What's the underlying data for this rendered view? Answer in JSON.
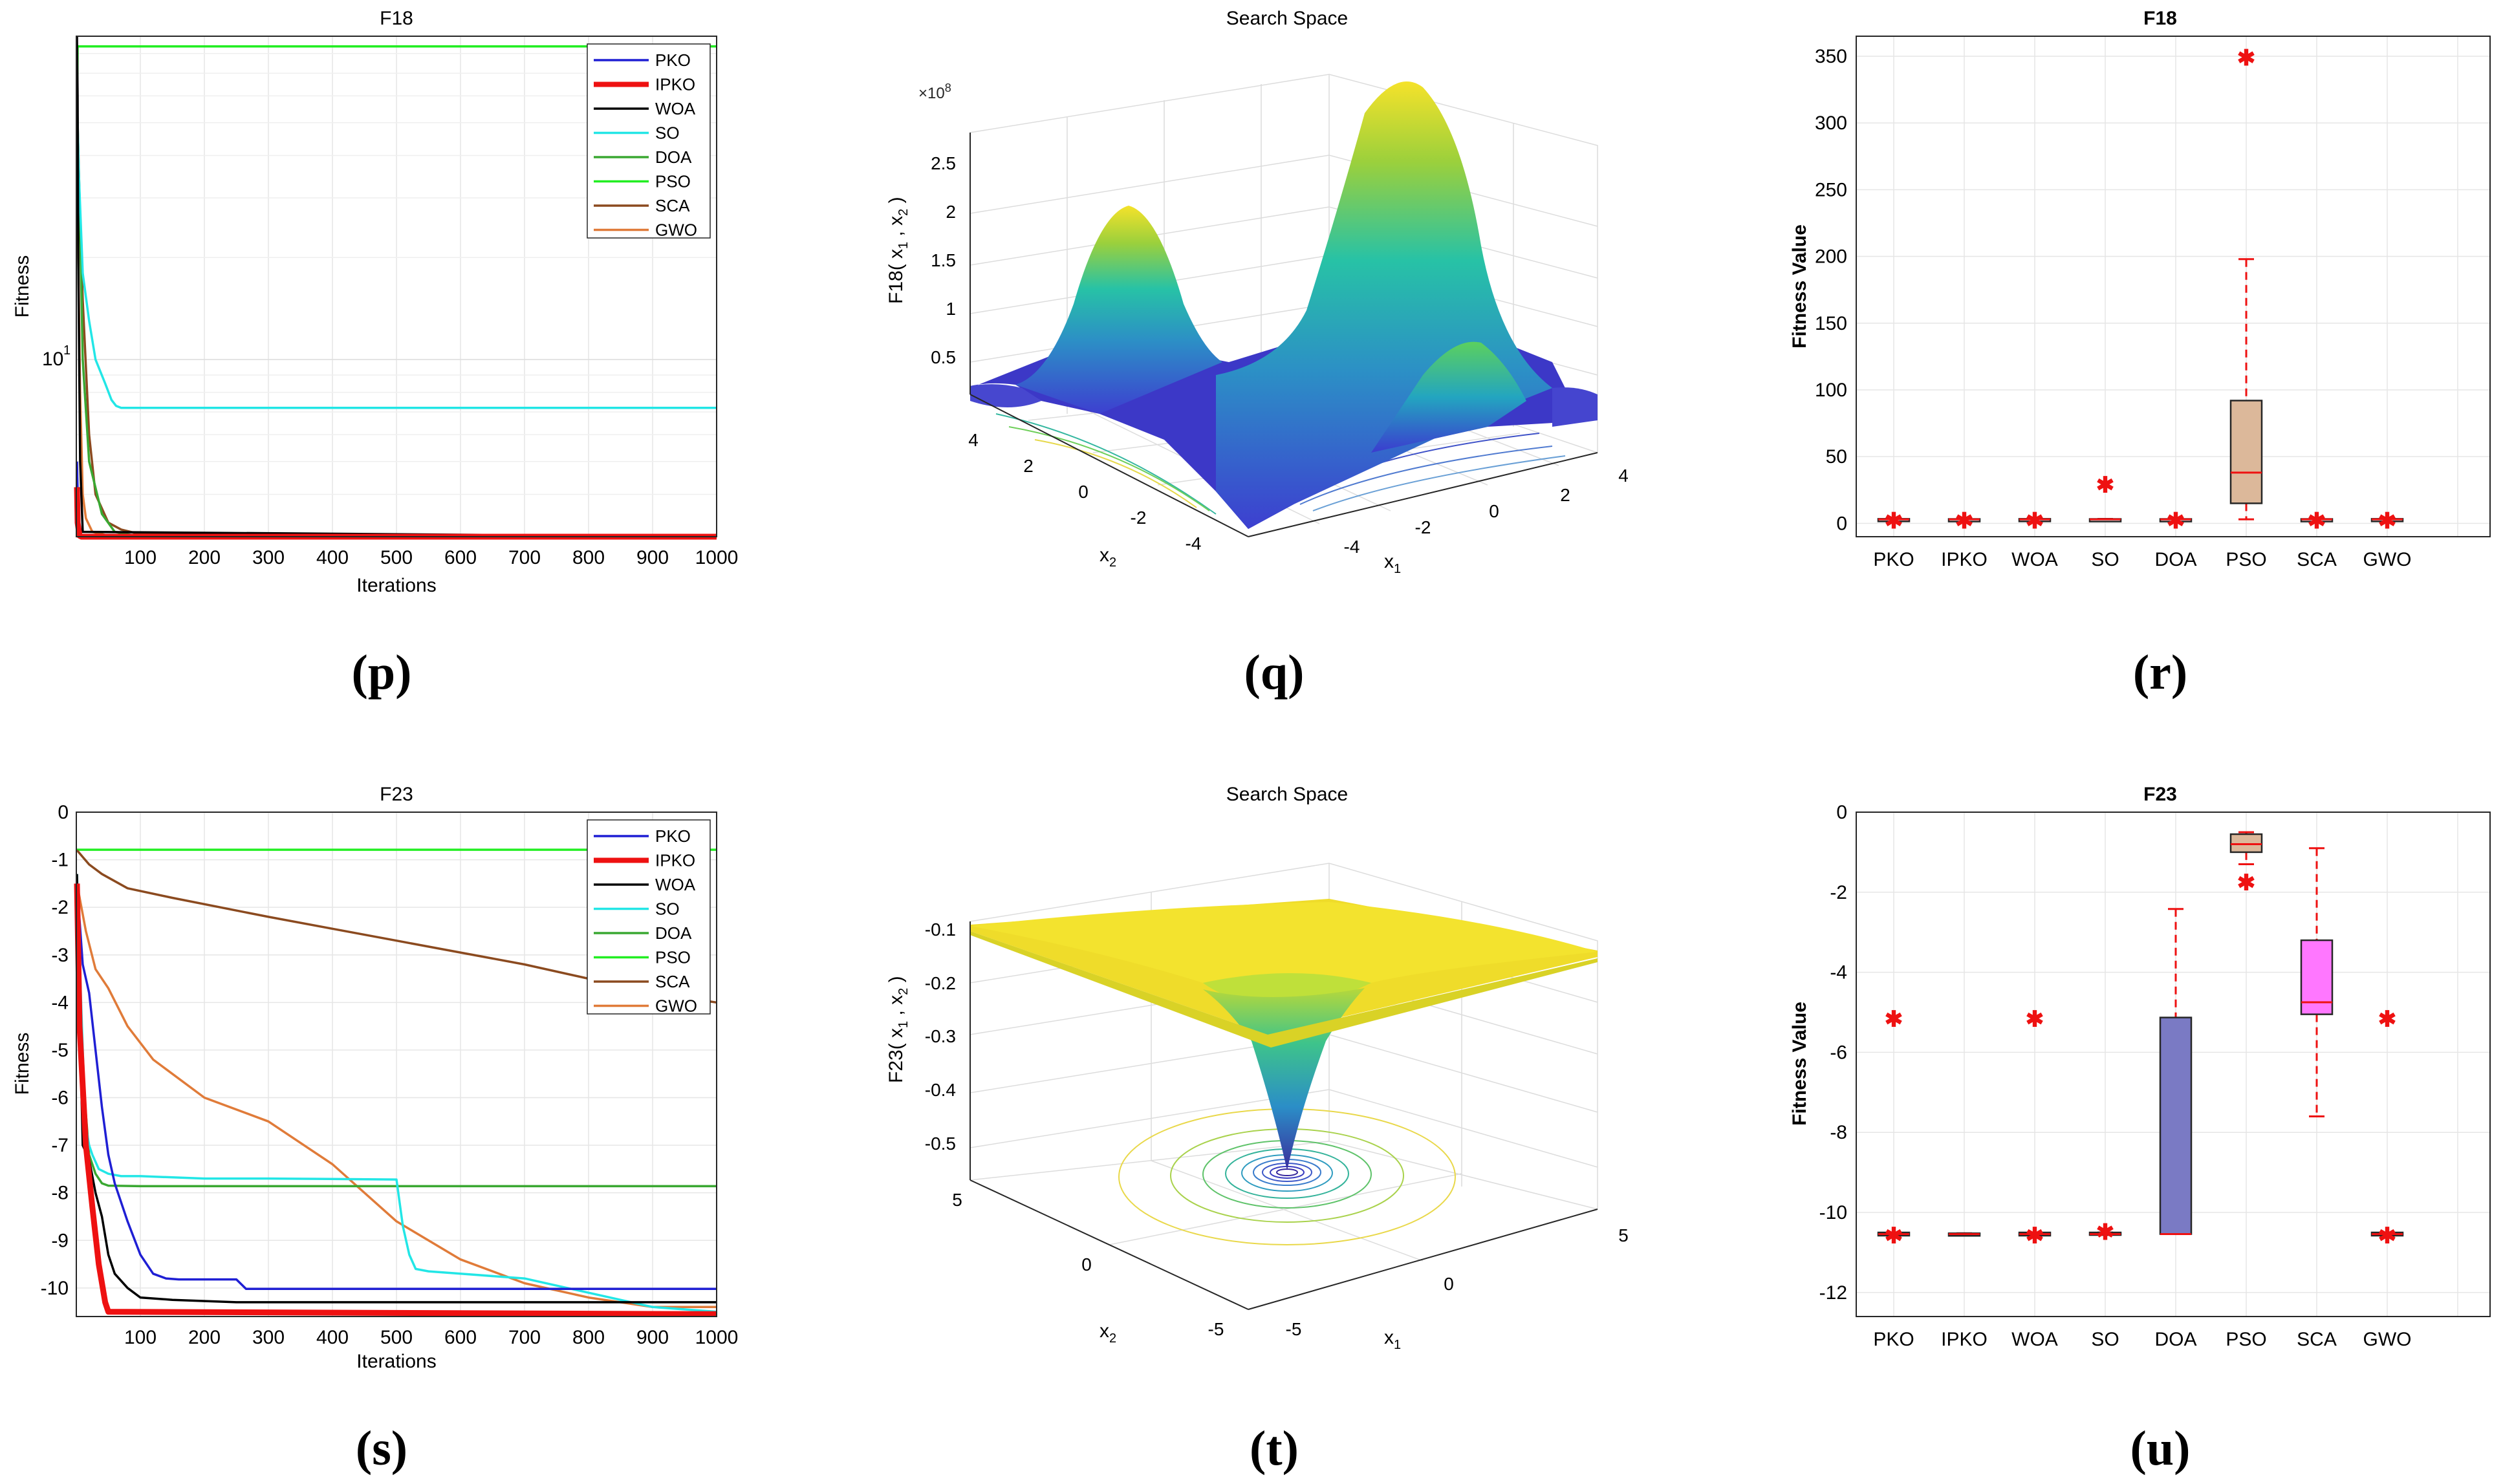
{
  "colors": {
    "PKO": "#1f1fd4",
    "IPKO": "#ee1111",
    "WOA": "#000000",
    "SO": "#22e6e6",
    "DOA": "#3aa832",
    "PSO": "#22ee22",
    "SCA": "#8b4a1f",
    "GWO": "#e07b39"
  },
  "captions": [
    "(p)",
    "(q)",
    "(r)",
    "(s)",
    "(t)",
    "(u)"
  ],
  "chart_data": [
    {
      "id": "p",
      "type": "line",
      "title": "F18",
      "xlabel": "Iterations",
      "ylabel": "Fitness",
      "yscale": "log",
      "xlim": [
        0,
        1000
      ],
      "ylim": [
        3,
        90
      ],
      "xticks": [
        100,
        200,
        300,
        400,
        500,
        600,
        700,
        800,
        900,
        1000
      ],
      "ytick_label_base": "10",
      "ytick_label_exp": "1",
      "legend": [
        "PKO",
        "IPKO",
        "WOA",
        "SO",
        "DOA",
        "PSO",
        "SCA",
        "GWO"
      ],
      "series": [
        {
          "name": "PKO",
          "x": [
            1,
            3,
            6,
            10,
            1000
          ],
          "y": [
            5,
            3.4,
            3.05,
            3,
            3
          ]
        },
        {
          "name": "IPKO",
          "x": [
            1,
            2,
            5,
            8,
            1000
          ],
          "y": [
            4.2,
            3.3,
            3.02,
            3,
            3
          ]
        },
        {
          "name": "WOA",
          "x": [
            1,
            2,
            3,
            6,
            10,
            1000
          ],
          "y": [
            90,
            60,
            20,
            5,
            3.1,
            3
          ]
        },
        {
          "name": "SO",
          "x": [
            1,
            4,
            10,
            20,
            30,
            45,
            55,
            62,
            70,
            1000
          ],
          "y": [
            60,
            35,
            18,
            13,
            10,
            8.5,
            7.6,
            7.3,
            7.2,
            7.2
          ]
        },
        {
          "name": "DOA",
          "x": [
            1,
            5,
            10,
            20,
            40,
            60,
            100,
            1000
          ],
          "y": [
            50,
            30,
            10,
            5,
            3.5,
            3.1,
            3,
            3
          ]
        },
        {
          "name": "PSO",
          "x": [
            1,
            2,
            3,
            1000
          ],
          "y": [
            50,
            84,
            84,
            84
          ]
        },
        {
          "name": "SCA",
          "x": [
            1,
            5,
            10,
            20,
            30,
            50,
            70,
            100,
            1000
          ],
          "y": [
            60,
            30,
            15,
            6,
            4,
            3.3,
            3.15,
            3.05,
            3
          ]
        },
        {
          "name": "GWO",
          "x": [
            1,
            3,
            6,
            10,
            15,
            25,
            50,
            1000
          ],
          "y": [
            40,
            20,
            8,
            4,
            3.4,
            3.1,
            3.02,
            3
          ]
        }
      ]
    },
    {
      "id": "q",
      "type": "surface",
      "title": "Search Space",
      "zlabel_fn": "F18",
      "exponent": "×10",
      "exponent_pow": "8",
      "xlabel": "x",
      "ylabel": "x",
      "zticks": [
        "0.5",
        "1",
        "1.5",
        "2",
        "2.5"
      ],
      "x1_ticks": [
        "-4",
        "-2",
        "0",
        "2",
        "4"
      ],
      "x2_ticks": [
        "4",
        "2",
        "0",
        "-2",
        "-4"
      ]
    },
    {
      "id": "r",
      "type": "box",
      "title": "F18",
      "ylabel": "Fitness Value",
      "ylim": [
        -10,
        365
      ],
      "yticks": [
        0,
        50,
        100,
        150,
        200,
        250,
        300,
        350
      ],
      "categories": [
        "PKO",
        "IPKO",
        "WOA",
        "SO",
        "DOA",
        "PSO",
        "SCA",
        "GWO"
      ],
      "boxes": [
        {
          "name": "PKO",
          "q1": 2.6,
          "med": 3,
          "q3": 3.4,
          "wlo": 2.6,
          "whi": 3.4,
          "outliers": [
            3
          ],
          "fill": "none"
        },
        {
          "name": "IPKO",
          "q1": 2.7,
          "med": 3,
          "q3": 3.3,
          "wlo": 2.7,
          "whi": 3.3,
          "outliers": [
            3
          ],
          "fill": "none"
        },
        {
          "name": "WOA",
          "q1": 2.6,
          "med": 3,
          "q3": 3.4,
          "wlo": 2.6,
          "whi": 3.4,
          "outliers": [
            3
          ],
          "fill": "none"
        },
        {
          "name": "SO",
          "q1": 2.7,
          "med": 3,
          "q3": 3.3,
          "wlo": 2.7,
          "whi": 3.3,
          "outliers": [
            30
          ],
          "fill": "none"
        },
        {
          "name": "DOA",
          "q1": 2.7,
          "med": 3,
          "q3": 3.3,
          "wlo": 2.7,
          "whi": 3.3,
          "outliers": [
            3
          ],
          "fill": "none"
        },
        {
          "name": "PSO",
          "q1": 15,
          "med": 38,
          "q3": 92,
          "wlo": 3,
          "whi": 198,
          "outliers": [
            350
          ],
          "fill": "#dcb89a"
        },
        {
          "name": "SCA",
          "q1": 2.7,
          "med": 3,
          "q3": 3.3,
          "wlo": 2.7,
          "whi": 3.3,
          "outliers": [
            3
          ],
          "fill": "none"
        },
        {
          "name": "GWO",
          "q1": 2.6,
          "med": 3,
          "q3": 3.4,
          "wlo": 2.6,
          "whi": 3.4,
          "outliers": [
            3
          ],
          "fill": "none"
        }
      ]
    },
    {
      "id": "s",
      "type": "line",
      "title": "F23",
      "xlabel": "Iterations",
      "ylabel": "Fitness",
      "yscale": "linear",
      "xlim": [
        0,
        1000
      ],
      "ylim": [
        -10.6,
        0
      ],
      "xticks": [
        100,
        200,
        300,
        400,
        500,
        600,
        700,
        800,
        900,
        1000
      ],
      "yticks": [
        0,
        -1,
        -2,
        -3,
        -4,
        -5,
        -6,
        -7,
        -8,
        -9,
        -10
      ],
      "legend": [
        "PKO",
        "IPKO",
        "WOA",
        "SO",
        "DOA",
        "PSO",
        "SCA",
        "GWO"
      ],
      "series": [
        {
          "name": "PKO",
          "x": [
            1,
            10,
            20,
            30,
            40,
            50,
            60,
            80,
            100,
            120,
            140,
            160,
            250,
            265,
            1000
          ],
          "y": [
            -1.5,
            -3.2,
            -3.8,
            -5,
            -6.2,
            -7.2,
            -7.8,
            -8.6,
            -9.3,
            -9.7,
            -9.8,
            -9.82,
            -9.82,
            -10.02,
            -10.02
          ]
        },
        {
          "name": "IPKO",
          "x": [
            1,
            5,
            15,
            25,
            35,
            45,
            50,
            1000
          ],
          "y": [
            -1.5,
            -4.5,
            -7,
            -8.3,
            -9.5,
            -10.3,
            -10.5,
            -10.55
          ]
        },
        {
          "name": "WOA",
          "x": [
            1,
            5,
            10,
            20,
            30,
            40,
            50,
            60,
            80,
            100,
            150,
            250,
            400,
            1000
          ],
          "y": [
            -1.3,
            -4.2,
            -7.0,
            -7.3,
            -8.0,
            -8.5,
            -9.3,
            -9.7,
            -10.0,
            -10.2,
            -10.25,
            -10.3,
            -10.3,
            -10.3
          ]
        },
        {
          "name": "SO",
          "x": [
            1,
            8,
            14,
            20,
            25,
            35,
            50,
            70,
            100,
            200,
            300,
            500,
            510,
            520,
            530,
            550,
            600,
            700,
            800,
            900,
            1000
          ],
          "y": [
            -1.3,
            -4.2,
            -6.5,
            -7.0,
            -7.2,
            -7.5,
            -7.6,
            -7.65,
            -7.65,
            -7.7,
            -7.7,
            -7.72,
            -8.7,
            -9.3,
            -9.6,
            -9.65,
            -9.7,
            -9.8,
            -10.1,
            -10.4,
            -10.5
          ]
        },
        {
          "name": "DOA",
          "x": [
            1,
            10,
            20,
            30,
            40,
            50,
            100,
            1000
          ],
          "y": [
            -1.5,
            -5.5,
            -7.2,
            -7.6,
            -7.8,
            -7.85,
            -7.86,
            -7.86
          ]
        },
        {
          "name": "PSO",
          "x": [
            1,
            1000
          ],
          "y": [
            -0.79,
            -0.79
          ]
        },
        {
          "name": "SCA",
          "x": [
            1,
            20,
            40,
            80,
            150,
            300,
            400,
            500,
            600,
            700,
            800,
            900,
            950,
            1000
          ],
          "y": [
            -0.8,
            -1.1,
            -1.3,
            -1.6,
            -1.8,
            -2.2,
            -2.45,
            -2.7,
            -2.95,
            -3.2,
            -3.5,
            -3.85,
            -3.9,
            -4.0
          ]
        },
        {
          "name": "GWO",
          "x": [
            1,
            15,
            30,
            50,
            80,
            120,
            200,
            300,
            400,
            500,
            600,
            700,
            800,
            900,
            1000
          ],
          "y": [
            -1.5,
            -2.5,
            -3.3,
            -3.7,
            -4.5,
            -5.2,
            -6.0,
            -6.5,
            -7.4,
            -8.6,
            -9.4,
            -9.9,
            -10.2,
            -10.4,
            -10.4
          ]
        }
      ]
    },
    {
      "id": "t",
      "type": "surface",
      "title": "Search Space",
      "zlabel_fn": "F23",
      "xlabel": "x",
      "ylabel": "x",
      "zticks": [
        "-0.1",
        "-0.2",
        "-0.3",
        "-0.4",
        "-0.5"
      ],
      "x1_ticks": [
        "-5",
        "0",
        "5"
      ],
      "x2_ticks": [
        "5",
        "0",
        "-5"
      ]
    },
    {
      "id": "u",
      "type": "box",
      "title": "F23",
      "ylabel": "Fitness Value",
      "ylim": [
        -12.6,
        0
      ],
      "yticks": [
        0,
        -2,
        -4,
        -6,
        -8,
        -10,
        -12
      ],
      "categories": [
        "PKO",
        "IPKO",
        "WOA",
        "SO",
        "DOA",
        "PSO",
        "SCA",
        "GWO"
      ],
      "boxes": [
        {
          "name": "PKO",
          "q1": -10.58,
          "med": -10.54,
          "q3": -10.5,
          "wlo": -10.58,
          "whi": -10.5,
          "outliers": [
            -5.13,
            -10.54
          ],
          "fill": "none"
        },
        {
          "name": "IPKO",
          "q1": -10.56,
          "med": -10.54,
          "q3": -10.52,
          "wlo": -10.56,
          "whi": -10.52,
          "outliers": [],
          "fill": "none"
        },
        {
          "name": "WOA",
          "q1": -10.58,
          "med": -10.54,
          "q3": -10.5,
          "wlo": -10.58,
          "whi": -10.5,
          "outliers": [
            -5.13,
            -10.54
          ],
          "fill": "none"
        },
        {
          "name": "SO",
          "q1": -10.56,
          "med": -10.54,
          "q3": -10.5,
          "wlo": -10.56,
          "whi": -10.5,
          "outliers": [
            -10.45
          ],
          "fill": "none"
        },
        {
          "name": "DOA",
          "q1": -10.54,
          "med": -10.54,
          "q3": -5.13,
          "wlo": -10.54,
          "whi": -2.42,
          "outliers": [],
          "fill": "#7a7ac4"
        },
        {
          "name": "PSO",
          "q1": -1.0,
          "med": -0.8,
          "q3": -0.55,
          "wlo": -1.3,
          "whi": -0.5,
          "outliers": [
            -1.72
          ],
          "fill": "#dcb89a"
        },
        {
          "name": "SCA",
          "q1": -5.05,
          "med": -4.75,
          "q3": -3.2,
          "wlo": -7.6,
          "whi": -0.9,
          "outliers": [],
          "fill": "#ff77ff"
        },
        {
          "name": "GWO",
          "q1": -10.58,
          "med": -10.54,
          "q3": -10.5,
          "wlo": -10.58,
          "whi": -10.5,
          "outliers": [
            -5.13,
            -10.54
          ],
          "fill": "none"
        }
      ]
    }
  ]
}
